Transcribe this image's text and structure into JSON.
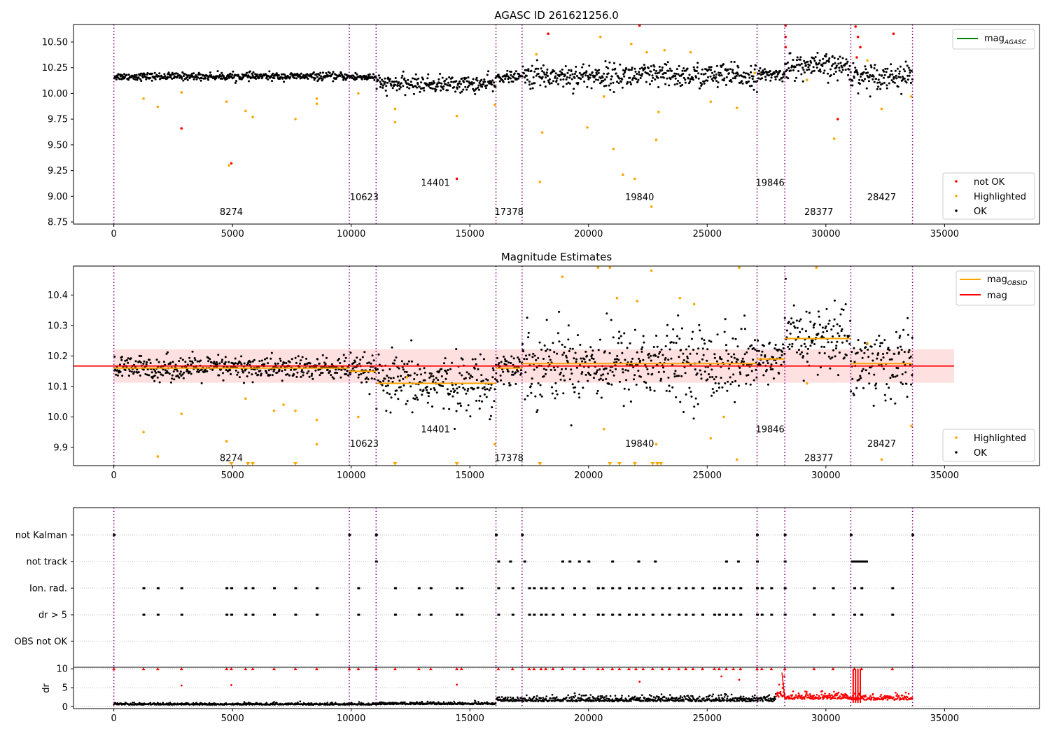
{
  "chart_data": [
    {
      "type": "scatter",
      "title": "AGASC ID 261621256.0",
      "xlim": [
        -1700,
        39000
      ],
      "ylim": [
        8.73,
        10.67
      ],
      "xticks": [
        0,
        5000,
        10000,
        15000,
        20000,
        25000,
        30000,
        35000
      ],
      "xtick_labels": [
        "0",
        "5000",
        "10000",
        "15000",
        "20000",
        "25000",
        "30000",
        "35000"
      ],
      "yticks": [
        8.75,
        9.0,
        9.25,
        9.5,
        9.75,
        10.0,
        10.25,
        10.5
      ],
      "ytick_labels": [
        "8.75",
        "9.00",
        "9.25",
        "9.50",
        "9.75",
        "10.00",
        "10.25",
        "10.50"
      ],
      "obsid_boundaries": [
        0,
        9920,
        11050,
        16100,
        17200,
        27100,
        28270,
        31050,
        33650
      ],
      "obsid_labels": [
        {
          "x": 4950,
          "y": 8.82,
          "text": "8274"
        },
        {
          "x": 10550,
          "y": 8.96,
          "text": "10623"
        },
        {
          "x": 13550,
          "y": 9.1,
          "text": "14401"
        },
        {
          "x": 16650,
          "y": 8.82,
          "text": "17378"
        },
        {
          "x": 22150,
          "y": 8.96,
          "text": "19840"
        },
        {
          "x": 27650,
          "y": 9.1,
          "text": "19846"
        },
        {
          "x": 29700,
          "y": 8.82,
          "text": "28377"
        },
        {
          "x": 32350,
          "y": 8.96,
          "text": "28427"
        }
      ],
      "series": [
        {
          "name": "not OK",
          "color": "#ff0000",
          "points": [
            [
              2850,
              9.66
            ],
            [
              4950,
              9.32
            ],
            [
              14450,
              9.17
            ],
            [
              18300,
              10.58
            ],
            [
              22150,
              10.66
            ],
            [
              30500,
              9.75
            ],
            [
              32850,
              10.58
            ],
            [
              28300,
              10.66
            ],
            [
              28300,
              10.55
            ],
            [
              28300,
              10.45
            ],
            [
              31250,
              10.65
            ],
            [
              31350,
              10.55
            ],
            [
              31450,
              10.45
            ],
            [
              31300,
              10.35
            ]
          ]
        },
        {
          "name": "Highlighted",
          "color": "#ffa500",
          "points": [
            [
              1250,
              9.95
            ],
            [
              1850,
              9.87
            ],
            [
              2850,
              10.01
            ],
            [
              4750,
              9.92
            ],
            [
              4850,
              9.3
            ],
            [
              5550,
              9.83
            ],
            [
              5850,
              9.77
            ],
            [
              7650,
              9.75
            ],
            [
              8550,
              9.9
            ],
            [
              8550,
              9.95
            ],
            [
              10300,
              10.0
            ],
            [
              11850,
              9.85
            ],
            [
              11850,
              9.72
            ],
            [
              14450,
              9.78
            ],
            [
              16050,
              9.89
            ],
            [
              17950,
              9.14
            ],
            [
              18050,
              9.62
            ],
            [
              19950,
              9.67
            ],
            [
              20650,
              9.97
            ],
            [
              21050,
              9.46
            ],
            [
              21450,
              9.21
            ],
            [
              21950,
              9.17
            ],
            [
              22450,
              10.4
            ],
            [
              22650,
              8.9
            ],
            [
              22850,
              9.55
            ],
            [
              22950,
              9.82
            ],
            [
              25150,
              9.92
            ],
            [
              26250,
              9.86
            ],
            [
              27000,
              10.2
            ],
            [
              29200,
              10.13
            ],
            [
              30350,
              9.56
            ],
            [
              31750,
              10.32
            ],
            [
              32350,
              9.85
            ],
            [
              33600,
              9.97
            ],
            [
              17800,
              10.38
            ],
            [
              20500,
              10.55
            ],
            [
              21800,
              10.48
            ],
            [
              23200,
              10.42
            ],
            [
              24300,
              10.4
            ]
          ]
        }
      ],
      "legend": [
        {
          "entries": [
            "mag_AGASC"
          ],
          "placement": "top-right"
        },
        {
          "entries": [
            "not OK",
            "Highlighted",
            "OK"
          ],
          "placement": "bottom-right"
        }
      ],
      "legend_text": {
        "mag_agasc_base": "mag",
        "mag_agasc_sub": "AGASC",
        "not_ok": "not OK",
        "highlighted": "Highlighted",
        "ok": "OK"
      },
      "segments": [
        {
          "x0": 0,
          "x1": 9920,
          "mean": 10.165,
          "spread": 0.018
        },
        {
          "x0": 9920,
          "x1": 11050,
          "mean": 10.16,
          "spread": 0.02
        },
        {
          "x0": 11050,
          "x1": 16100,
          "mean": 10.09,
          "spread": 0.04
        },
        {
          "x0": 16100,
          "x1": 17200,
          "mean": 10.16,
          "spread": 0.025
        },
        {
          "x0": 17200,
          "x1": 27100,
          "mean": 10.17,
          "spread": 0.06
        },
        {
          "x0": 27100,
          "x1": 28270,
          "mean": 10.18,
          "spread": 0.03
        },
        {
          "x0": 28270,
          "x1": 31050,
          "mean": 10.26,
          "spread": 0.06
        },
        {
          "x0": 31050,
          "x1": 33650,
          "mean": 10.17,
          "spread": 0.06
        }
      ]
    },
    {
      "type": "scatter",
      "title": "Magnitude Estimates",
      "xlim": [
        -1700,
        39000
      ],
      "ylim": [
        9.84,
        10.495
      ],
      "xticks": [
        0,
        5000,
        10000,
        15000,
        20000,
        25000,
        30000,
        35000
      ],
      "xtick_labels": [
        "0",
        "5000",
        "10000",
        "15000",
        "20000",
        "25000",
        "30000",
        "35000"
      ],
      "yticks": [
        9.9,
        10.0,
        10.1,
        10.2,
        10.3,
        10.4
      ],
      "ytick_labels": [
        "9.9",
        "10.0",
        "10.1",
        "10.2",
        "10.3",
        "10.4"
      ],
      "mag": 10.167,
      "mag_band": [
        10.112,
        10.222
      ],
      "mag_band_xrange": [
        0,
        35400
      ],
      "mag_obsid": [
        {
          "x0": 0,
          "x1": 9920,
          "value": 10.16
        },
        {
          "x0": 9920,
          "x1": 11050,
          "value": 10.15
        },
        {
          "x0": 11050,
          "x1": 16100,
          "value": 10.11
        },
        {
          "x0": 16100,
          "x1": 17200,
          "value": 10.16
        },
        {
          "x0": 17200,
          "x1": 27100,
          "value": 10.175
        },
        {
          "x0": 27100,
          "x1": 28270,
          "value": 10.19
        },
        {
          "x0": 28270,
          "x1": 31050,
          "value": 10.257
        },
        {
          "x0": 31050,
          "x1": 33650,
          "value": 10.175
        }
      ],
      "obsid_labels": [
        {
          "x": 4950,
          "y": 9.855,
          "text": "8274"
        },
        {
          "x": 10550,
          "y": 9.902,
          "text": "10623"
        },
        {
          "x": 13550,
          "y": 9.949,
          "text": "14401"
        },
        {
          "x": 16650,
          "y": 9.855,
          "text": "17378"
        },
        {
          "x": 22150,
          "y": 9.902,
          "text": "19840"
        },
        {
          "x": 27650,
          "y": 9.949,
          "text": "19846"
        },
        {
          "x": 29700,
          "y": 9.855,
          "text": "28377"
        },
        {
          "x": 32350,
          "y": 9.902,
          "text": "28427"
        }
      ],
      "highlighted_points": [
        [
          1250,
          9.95
        ],
        [
          1850,
          9.87
        ],
        [
          2850,
          10.01
        ],
        [
          4750,
          9.92
        ],
        [
          5550,
          10.06
        ],
        [
          6750,
          10.02
        ],
        [
          7150,
          10.04
        ],
        [
          7650,
          10.02
        ],
        [
          8550,
          9.91
        ],
        [
          8550,
          9.99
        ],
        [
          10300,
          10.0
        ],
        [
          12350,
          10.13
        ],
        [
          16050,
          9.91
        ],
        [
          20650,
          9.96
        ],
        [
          22850,
          9.91
        ],
        [
          25150,
          9.93
        ],
        [
          25700,
          10.0
        ],
        [
          26250,
          9.86
        ],
        [
          29200,
          10.11
        ],
        [
          31750,
          10.24
        ],
        [
          32350,
          9.86
        ],
        [
          33600,
          9.97
        ],
        [
          18900,
          10.46
        ],
        [
          20400,
          10.49
        ],
        [
          20900,
          10.49
        ],
        [
          21200,
          10.39
        ],
        [
          22050,
          10.38
        ],
        [
          22650,
          10.48
        ],
        [
          23850,
          10.39
        ],
        [
          24450,
          10.37
        ],
        [
          26350,
          10.49
        ],
        [
          29600,
          10.49
        ]
      ],
      "clipped_markers_x": [
        4950,
        5650,
        5850,
        7650,
        11850,
        14450,
        17950,
        20900,
        21300,
        21950,
        22700,
        22900,
        23050
      ],
      "legend": [
        {
          "entries": [
            "mag_OBSID",
            "mag"
          ],
          "placement": "top-right"
        },
        {
          "entries": [
            "Highlighted",
            "OK"
          ],
          "placement": "bottom-right"
        }
      ],
      "legend_text": {
        "mag_obsid_base": "mag",
        "mag_obsid_sub": "OBSID",
        "mag": "mag",
        "highlighted": "Highlighted",
        "ok": "OK"
      }
    },
    {
      "type": "scatter",
      "title": "",
      "xlim": [
        -1700,
        39000
      ],
      "flag_rows": [
        "not Kalman",
        "not track",
        "Ion. rad.",
        "dr > 5",
        "OBS not OK"
      ],
      "flag_points": {
        "not Kalman": [
          0,
          9920,
          11050,
          16100,
          17200,
          27100,
          28270,
          31050,
          33650
        ],
        "not track": [
          11050,
          16200,
          16700,
          17300,
          18900,
          19200,
          19600,
          20000,
          21000,
          22100,
          22800,
          25800,
          26300,
          27100,
          28270,
          31100,
          31200,
          31300,
          31400,
          31500,
          31600,
          31700
        ],
        "Ion. rad.": [
          1250,
          1850,
          2850,
          4750,
          4950,
          5550,
          5850,
          6750,
          7650,
          8550,
          10300,
          11850,
          12850,
          13350,
          14450,
          14650,
          16200,
          16800,
          17500,
          17700,
          18000,
          18200,
          18500,
          18900,
          19400,
          19800,
          20400,
          20600,
          21000,
          21300,
          21700,
          22000,
          22300,
          22700,
          23100,
          23400,
          23800,
          24100,
          24400,
          24800,
          25300,
          25500,
          25800,
          26100,
          26400,
          27100,
          27300,
          27700,
          28270,
          29500,
          30300,
          31200,
          31500,
          32800
        ],
        "dr > 5": [
          1250,
          1850,
          2850,
          4750,
          4950,
          5550,
          5850,
          6750,
          7650,
          8550,
          10300,
          11850,
          12850,
          13350,
          14450,
          14650,
          16200,
          16800,
          17500,
          17700,
          18000,
          18200,
          18500,
          18900,
          19400,
          19800,
          20400,
          20600,
          21000,
          21300,
          21700,
          22000,
          22300,
          22700,
          23100,
          23400,
          23800,
          24100,
          24400,
          24800,
          25300,
          25500,
          25800,
          26100,
          26400,
          27100,
          27300,
          27700,
          28270,
          29500,
          30300,
          31200,
          31500,
          32800
        ],
        "OBS not OK": []
      }
    },
    {
      "type": "scatter",
      "ylabel": "dr",
      "xlim": [
        -1700,
        39000
      ],
      "ylim": [
        -0.5,
        10.4
      ],
      "xticks": [
        0,
        5000,
        10000,
        15000,
        20000,
        25000,
        30000,
        35000
      ],
      "xtick_labels": [
        "0",
        "5000",
        "10000",
        "15000",
        "20000",
        "25000",
        "30000",
        "35000"
      ],
      "yticks": [
        0,
        5,
        10
      ],
      "ytick_labels": [
        "0",
        "5",
        "10"
      ],
      "segments": [
        {
          "x0": 0,
          "x1": 11050,
          "base": 0.5,
          "spread": 0.4,
          "color": "#000000"
        },
        {
          "x0": 11050,
          "x1": 16100,
          "base": 0.6,
          "spread": 0.5,
          "color": "#000000"
        },
        {
          "x0": 16100,
          "x1": 27900,
          "base": 1.4,
          "spread": 1.2,
          "color": "#000000"
        },
        {
          "x0": 27900,
          "x1": 28270,
          "base": 2.5,
          "spread": 2.0,
          "color": "#ff0000"
        },
        {
          "x0": 28270,
          "x1": 31050,
          "base": 2.0,
          "spread": 1.3,
          "color": "#ff0000"
        },
        {
          "x0": 31050,
          "x1": 33650,
          "base": 1.8,
          "spread": 1.3,
          "color": "#ff0000"
        }
      ],
      "clipped_points_x": [
        0,
        1250,
        1850,
        2850,
        4750,
        4950,
        5550,
        5850,
        6750,
        7650,
        8550,
        9920,
        10300,
        11050,
        11850,
        12850,
        13350,
        14450,
        14650,
        16200,
        16800,
        17500,
        17700,
        18000,
        18200,
        18500,
        18900,
        19400,
        19800,
        20400,
        20600,
        21000,
        21300,
        21700,
        22000,
        22300,
        22700,
        23100,
        23400,
        23800,
        24100,
        24400,
        24800,
        25300,
        25500,
        25800,
        26100,
        26400,
        27100,
        27300,
        27700,
        28270,
        29500,
        30300,
        31200,
        31500,
        32800
      ],
      "extra_points": [
        [
          2850,
          5.6
        ],
        [
          4950,
          5.7
        ],
        [
          14450,
          5.8
        ],
        [
          22150,
          6.6
        ],
        [
          26350,
          7.1
        ],
        [
          25600,
          8.0
        ],
        [
          28200,
          6.0
        ],
        [
          28250,
          8.0
        ]
      ]
    }
  ]
}
